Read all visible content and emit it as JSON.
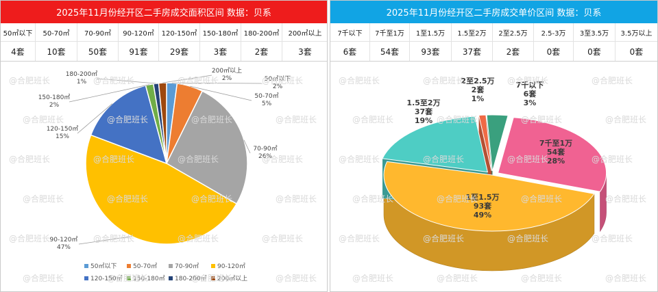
{
  "left": {
    "title": "2025年11月份经开区二手房成交面积区间 数据：贝系",
    "title_color": "#ee1c1c",
    "columns": [
      "50㎡以下",
      "50-70㎡",
      "70-90㎡",
      "90-120㎡",
      "120-150㎡",
      "150-180㎡",
      "180-200㎡",
      "200㎡以上"
    ],
    "values": [
      "4套",
      "10套",
      "50套",
      "91套",
      "29套",
      "3套",
      "2套",
      "3套"
    ]
  },
  "right": {
    "title": "2025年11月份经开区二手房成交单价区间 数据：贝系",
    "title_color": "#11a4e4",
    "columns": [
      "7千以下",
      "7千至1万",
      "1至1.5万",
      "1.5至2万",
      "2至2.5万",
      "2.5-3万",
      "3至3.5万",
      "3.5万以上"
    ],
    "values": [
      "6套",
      "54套",
      "93套",
      "37套",
      "2套",
      "0套",
      "0套",
      "0套"
    ]
  },
  "watermark": "@合肥班长",
  "chart_data": [
    {
      "type": "pie",
      "categories": [
        "50㎡以下",
        "50-70㎡",
        "70-90㎡",
        "90-120㎡",
        "120-150㎡",
        "150-180㎡",
        "180-200㎡",
        "200㎡以上"
      ],
      "values": [
        4,
        10,
        50,
        91,
        29,
        3,
        2,
        3
      ],
      "percent_labels": [
        "2%",
        "5%",
        "26%",
        "47%",
        "15%",
        "2%",
        "1%",
        "2%"
      ],
      "colors": [
        "#5b9bd5",
        "#ed7d31",
        "#a5a5a5",
        "#ffc000",
        "#4472c4",
        "#70ad47",
        "#264478",
        "#9e480e"
      ],
      "legend": "bottom"
    },
    {
      "type": "pie",
      "style": "3d",
      "categories": [
        "7千以下",
        "7千至1万",
        "1至1.5万",
        "1.5至2万",
        "2至2.5万"
      ],
      "values": [
        6,
        54,
        93,
        37,
        2
      ],
      "count_labels": [
        "6套",
        "54套",
        "93套",
        "37套",
        "2套"
      ],
      "percent_labels": [
        "3%",
        "28%",
        "49%",
        "19%",
        "1%"
      ],
      "colors": [
        "#3aa07e",
        "#f06292",
        "#ffb82e",
        "#4ecdc4",
        "#f06a45"
      ],
      "legend": "none"
    }
  ]
}
